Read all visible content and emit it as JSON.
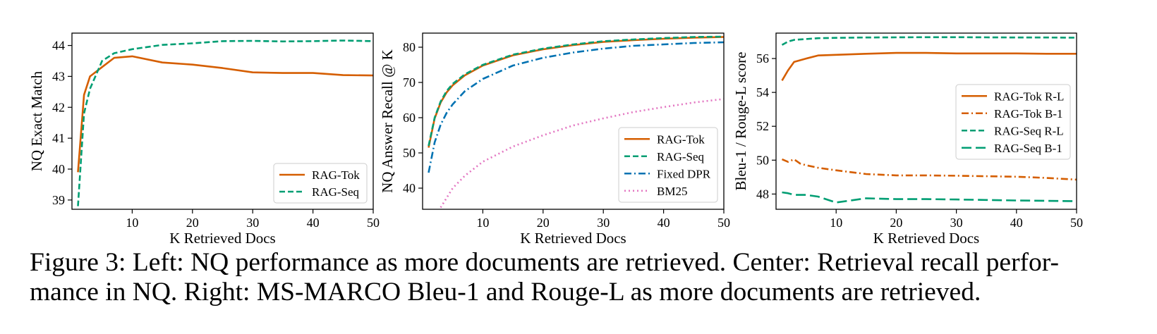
{
  "chart_data": [
    {
      "type": "line",
      "xlabel": "K Retrieved Docs",
      "ylabel": "NQ Exact Match",
      "xlim": [
        0,
        50
      ],
      "ylim": [
        38.7,
        44.4
      ],
      "xticks": [
        10,
        20,
        30,
        40,
        50
      ],
      "yticks": [
        39,
        40,
        41,
        42,
        43,
        44
      ],
      "legend_position": "lower-right",
      "grid": false,
      "series": [
        {
          "name": "RAG-Tok",
          "color": "#d55e00",
          "dash": "solid",
          "x": [
            1,
            2,
            3,
            5,
            7,
            10,
            15,
            20,
            25,
            30,
            35,
            40,
            45,
            50
          ],
          "y": [
            39.9,
            42.4,
            43.0,
            43.3,
            43.6,
            43.65,
            43.45,
            43.38,
            43.27,
            43.13,
            43.11,
            43.11,
            43.04,
            43.03
          ]
        },
        {
          "name": "RAG-Seq",
          "color": "#009e73",
          "dash": "dashed",
          "x": [
            1,
            2,
            3,
            5,
            7,
            10,
            15,
            20,
            25,
            30,
            35,
            40,
            45,
            50
          ],
          "y": [
            38.8,
            41.8,
            42.6,
            43.5,
            43.75,
            43.88,
            44.02,
            44.07,
            44.14,
            44.15,
            44.13,
            44.14,
            44.16,
            44.14
          ]
        }
      ]
    },
    {
      "type": "line",
      "xlabel": "K Retrieved Docs",
      "ylabel": "NQ Answer Recall @ K",
      "xlim": [
        0,
        50
      ],
      "ylim": [
        34,
        84
      ],
      "xticks": [
        10,
        20,
        30,
        40,
        50
      ],
      "yticks": [
        40,
        50,
        60,
        70,
        80
      ],
      "legend_position": "lower-right",
      "grid": false,
      "series": [
        {
          "name": "RAG-Tok",
          "color": "#d55e00",
          "dash": "solid",
          "x": [
            1,
            2,
            3,
            4,
            5,
            7,
            10,
            15,
            20,
            25,
            30,
            35,
            40,
            45,
            50
          ],
          "y": [
            51.5,
            59.8,
            64.3,
            67.2,
            69.2,
            72.0,
            74.8,
            77.7,
            79.4,
            80.6,
            81.5,
            82.0,
            82.4,
            82.7,
            82.9
          ]
        },
        {
          "name": "RAG-Seq",
          "color": "#009e73",
          "dash": "dashed",
          "x": [
            1,
            2,
            3,
            4,
            5,
            7,
            10,
            15,
            20,
            25,
            30,
            35,
            40,
            45,
            50
          ],
          "y": [
            52.0,
            60.0,
            64.6,
            67.6,
            69.6,
            72.3,
            75.0,
            77.9,
            79.6,
            80.8,
            81.7,
            82.2,
            82.6,
            82.9,
            83.0
          ]
        },
        {
          "name": "Fixed DPR",
          "color": "#0072b2",
          "dash": "dashdot",
          "x": [
            1,
            2,
            3,
            4,
            5,
            7,
            10,
            15,
            20,
            25,
            30,
            35,
            40,
            45,
            50
          ],
          "y": [
            44.4,
            53.0,
            58.0,
            61.4,
            63.8,
            67.5,
            71.0,
            74.8,
            77.0,
            78.5,
            79.6,
            80.4,
            80.8,
            81.2,
            81.4
          ]
        },
        {
          "name": "BM25",
          "color": "#e377c2",
          "dash": "dotted",
          "x": [
            3,
            5,
            7,
            10,
            15,
            20,
            25,
            30,
            35,
            40,
            45,
            50
          ],
          "y": [
            34.5,
            40.0,
            43.5,
            47.5,
            51.8,
            55.0,
            57.8,
            59.8,
            61.6,
            63.0,
            64.3,
            65.3
          ]
        }
      ]
    },
    {
      "type": "line",
      "xlabel": "K Retrieved Docs",
      "ylabel": "Bleu-1 / Rouge-L score",
      "xlim": [
        0,
        50
      ],
      "ylim": [
        47.1,
        57.5
      ],
      "xticks": [
        10,
        20,
        30,
        40,
        50
      ],
      "yticks": [
        48,
        50,
        52,
        54,
        56
      ],
      "legend_position": "center-right",
      "grid": false,
      "series": [
        {
          "name": "RAG-Tok R-L",
          "color": "#d55e00",
          "dash": "solid",
          "x": [
            1,
            2,
            3,
            5,
            7,
            10,
            15,
            20,
            25,
            30,
            35,
            40,
            45,
            50
          ],
          "y": [
            54.7,
            55.3,
            55.8,
            56.0,
            56.18,
            56.22,
            56.28,
            56.33,
            56.33,
            56.3,
            56.3,
            56.3,
            56.28,
            56.28
          ]
        },
        {
          "name": "RAG-Tok B-1",
          "color": "#d55e00",
          "dash": "dashdot",
          "x": [
            1,
            2,
            3,
            4,
            5,
            7,
            10,
            15,
            20,
            25,
            30,
            35,
            40,
            45,
            50
          ],
          "y": [
            50.05,
            49.9,
            50.05,
            49.8,
            49.7,
            49.55,
            49.4,
            49.18,
            49.1,
            49.1,
            49.08,
            49.05,
            49.02,
            48.95,
            48.85
          ]
        },
        {
          "name": "RAG-Seq R-L",
          "color": "#009e73",
          "dash": "dashed",
          "x": [
            1,
            2,
            3,
            5,
            7,
            10,
            15,
            20,
            25,
            30,
            35,
            40,
            45,
            50
          ],
          "y": [
            56.8,
            57.0,
            57.1,
            57.15,
            57.2,
            57.22,
            57.24,
            57.25,
            57.26,
            57.26,
            57.25,
            57.24,
            57.24,
            57.23
          ]
        },
        {
          "name": "RAG-Seq B-1",
          "color": "#009e73",
          "dash": "longdash",
          "x": [
            1,
            2,
            3,
            5,
            7,
            10,
            11,
            15,
            20,
            25,
            30,
            35,
            40,
            45,
            50
          ],
          "y": [
            48.1,
            48.05,
            47.95,
            47.95,
            47.85,
            47.5,
            47.55,
            47.75,
            47.7,
            47.7,
            47.68,
            47.65,
            47.62,
            47.6,
            47.58
          ]
        }
      ]
    }
  ],
  "caption": {
    "line1": "Figure 3: Left: NQ performance as more documents are retrieved. Center: Retrieval recall perfor-",
    "line2": "mance in NQ. Right: MS-MARCO Bleu-1 and Rouge-L as more documents are retrieved."
  }
}
